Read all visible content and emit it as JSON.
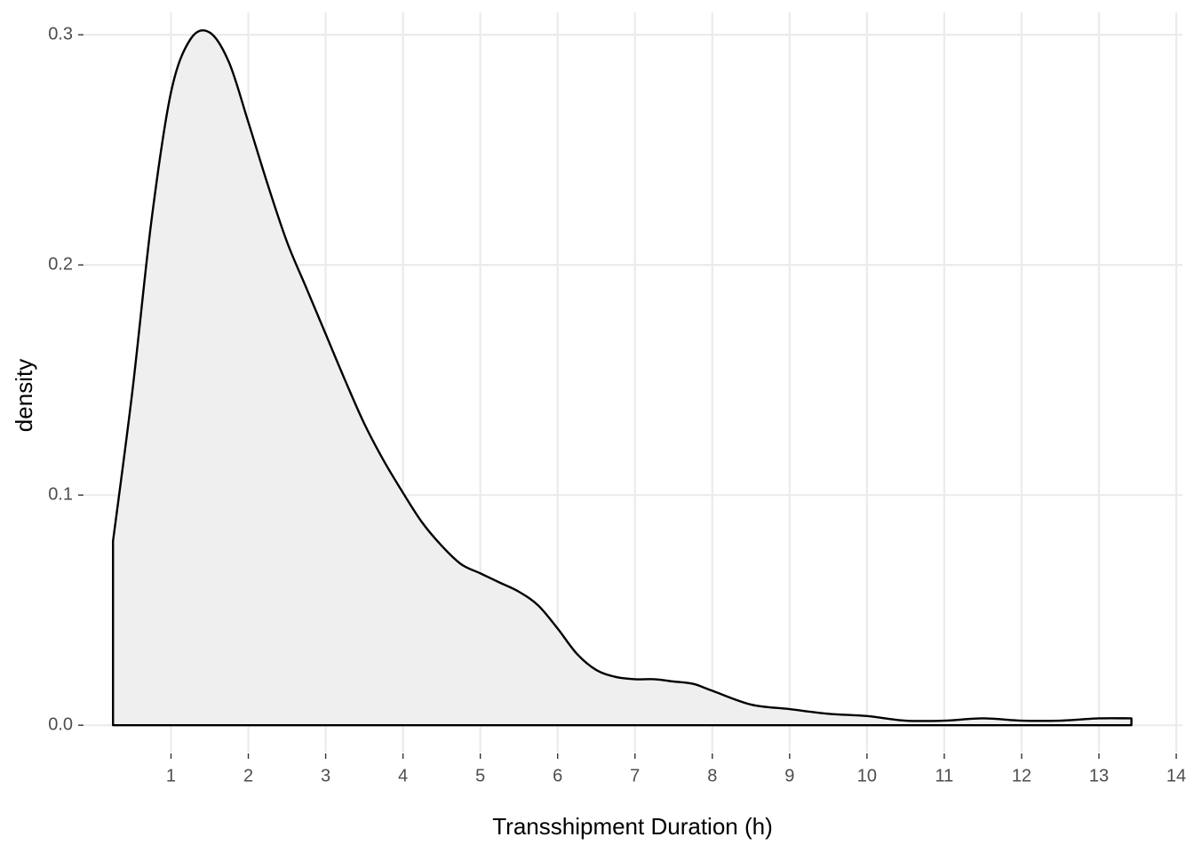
{
  "chart_data": {
    "type": "area",
    "title": "",
    "xlabel": "Transshipment Duration (h)",
    "ylabel": "density",
    "xlim": [
      -0.12,
      14.08
    ],
    "ylim": [
      -0.0115,
      0.3097
    ],
    "x_ticks": [
      1,
      2,
      3,
      4,
      5,
      6,
      7,
      8,
      9,
      10,
      11,
      12,
      13,
      14
    ],
    "x_tick_labels": [
      "1",
      "2",
      "3",
      "4",
      "5",
      "6",
      "7",
      "8",
      "9",
      "10",
      "11",
      "12",
      "13",
      "14"
    ],
    "y_ticks": [
      0.0,
      0.1,
      0.2,
      0.3
    ],
    "y_tick_labels": [
      "0.0",
      "0.1",
      "0.2",
      "0.3"
    ],
    "grid": true,
    "fill_color": "#efefef",
    "line_color": "#000000",
    "series": [
      {
        "x": [
          0.25,
          0.5,
          0.75,
          1.0,
          1.25,
          1.5,
          1.75,
          2.0,
          2.25,
          2.5,
          2.75,
          3.0,
          3.25,
          3.5,
          3.75,
          4.0,
          4.25,
          4.5,
          4.75,
          5.0,
          5.25,
          5.5,
          5.75,
          6.0,
          6.25,
          6.5,
          6.75,
          7.0,
          7.25,
          7.5,
          7.75,
          8.0,
          8.5,
          9.0,
          9.5,
          10.0,
          10.5,
          11.0,
          11.5,
          12.0,
          12.5,
          13.0,
          13.42
        ],
        "values": [
          0.08,
          0.145,
          0.22,
          0.275,
          0.298,
          0.301,
          0.288,
          0.262,
          0.235,
          0.21,
          0.19,
          0.17,
          0.15,
          0.131,
          0.115,
          0.101,
          0.088,
          0.078,
          0.07,
          0.066,
          0.062,
          0.058,
          0.052,
          0.042,
          0.031,
          0.024,
          0.021,
          0.02,
          0.02,
          0.019,
          0.018,
          0.015,
          0.009,
          0.007,
          0.005,
          0.004,
          0.002,
          0.002,
          0.003,
          0.002,
          0.002,
          0.003,
          0.003
        ]
      }
    ]
  }
}
